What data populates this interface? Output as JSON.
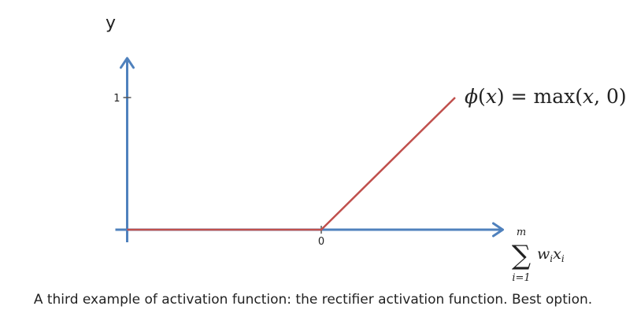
{
  "chart_data": {
    "type": "line",
    "title": "",
    "ylabel": "y",
    "xlabel": {
      "sum_top": "m",
      "sum_symbol": "∑",
      "sum_bottom": "i=1",
      "term": "w",
      "term_sub": "i",
      "term2": "x",
      "term2_sub": "i"
    },
    "x_ticks": [
      {
        "value": 0,
        "label": "0"
      }
    ],
    "y_ticks": [
      {
        "value": 1,
        "label": "1"
      }
    ],
    "xlim": [
      -1.45,
      1.35
    ],
    "ylim": [
      0,
      1.28
    ],
    "grid": false,
    "series": [
      {
        "x": [
          -1.45,
          0,
          1.0
        ],
        "y": [
          0,
          0,
          1.0
        ],
        "color": "#c0504d"
      }
    ],
    "annotation": {
      "phi": "ϕ",
      "open": "(",
      "x": "x",
      "rest": ") = max(",
      "x2": "x",
      "end": ", 0)"
    },
    "axis_color": "#4f81bd"
  },
  "caption": "A third example of activation function: the rectifier activation function. Best option."
}
